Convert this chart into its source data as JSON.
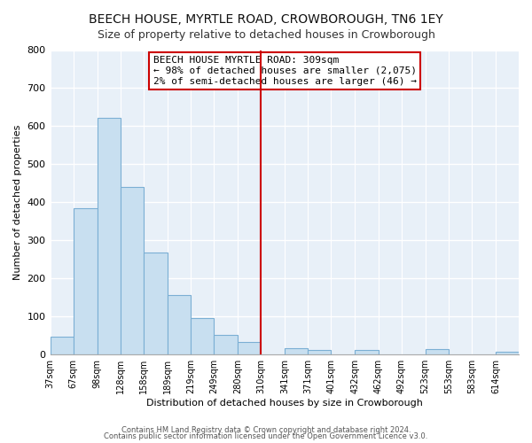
{
  "title": "BEECH HOUSE, MYRTLE ROAD, CROWBOROUGH, TN6 1EY",
  "subtitle": "Size of property relative to detached houses in Crowborough",
  "xlabel": "Distribution of detached houses by size in Crowborough",
  "ylabel": "Number of detached properties",
  "bins": [
    37,
    67,
    98,
    128,
    158,
    189,
    219,
    249,
    280,
    310,
    341,
    371,
    401,
    432,
    462,
    492,
    523,
    553,
    583,
    614,
    644
  ],
  "counts": [
    48,
    384,
    622,
    440,
    268,
    157,
    95,
    51,
    32,
    0,
    16,
    12,
    0,
    11,
    0,
    0,
    14,
    0,
    0,
    7
  ],
  "bar_color": "#c8dff0",
  "bar_edge_color": "#7bafd4",
  "vline_x": 310,
  "vline_color": "#cc0000",
  "annotation_title": "BEECH HOUSE MYRTLE ROAD: 309sqm",
  "annotation_line1": "← 98% of detached houses are smaller (2,075)",
  "annotation_line2": "2% of semi-detached houses are larger (46) →",
  "ylim": [
    0,
    800
  ],
  "yticks": [
    0,
    100,
    200,
    300,
    400,
    500,
    600,
    700,
    800
  ],
  "footer1": "Contains HM Land Registry data © Crown copyright and database right 2024.",
  "footer2": "Contains public sector information licensed under the Open Government Licence v3.0.",
  "bg_color": "#ffffff",
  "plot_bg_color": "#e8f0f8"
}
